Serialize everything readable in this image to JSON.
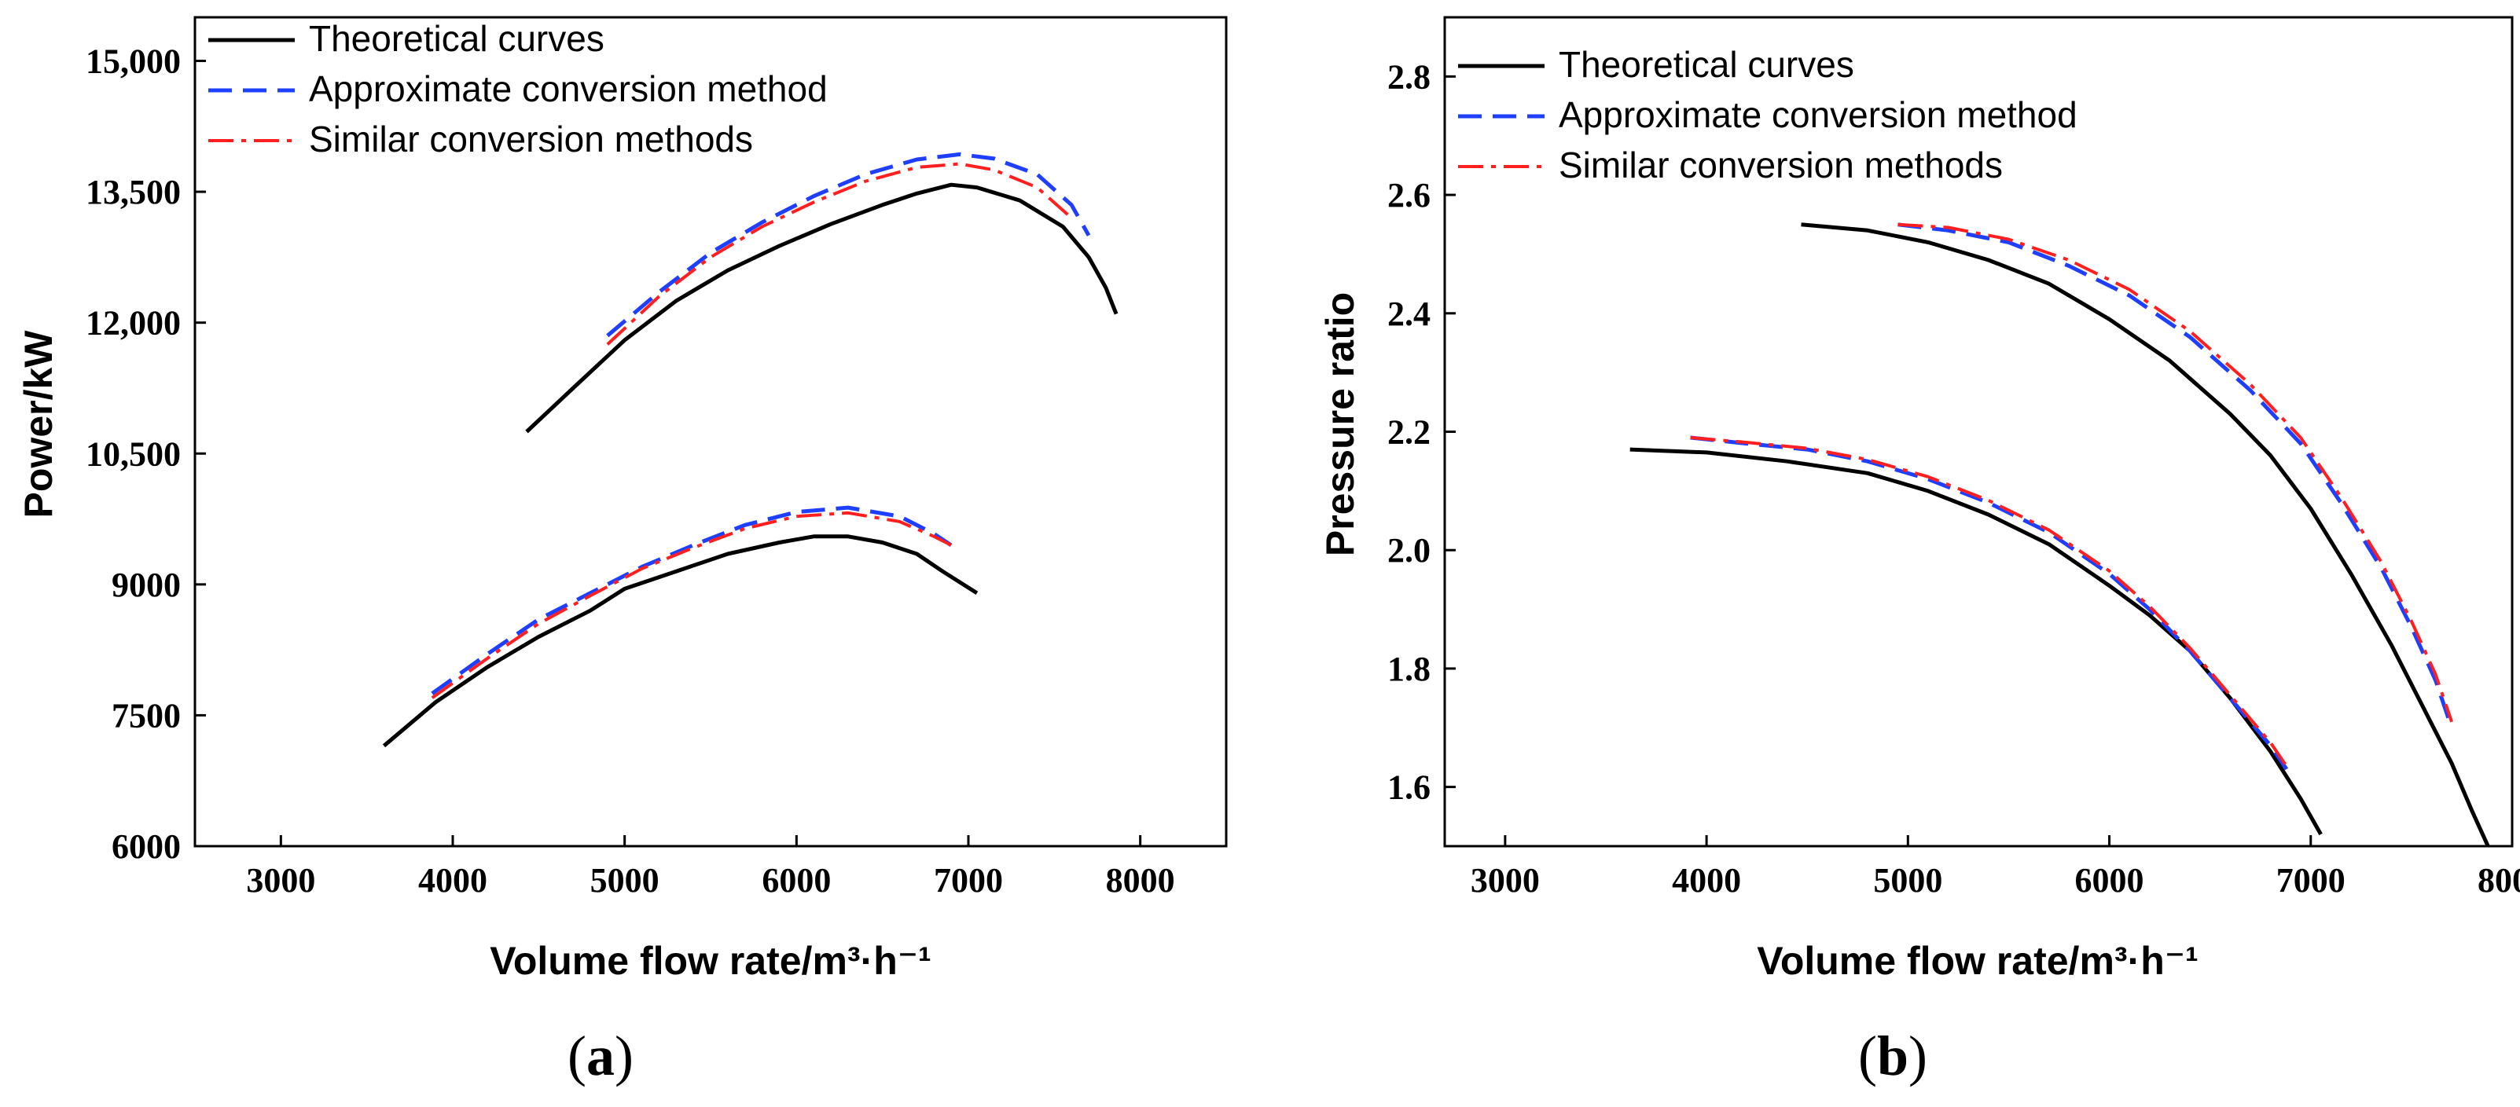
{
  "chart_data": [
    {
      "type": "line",
      "panel_label": "(a)",
      "panel_letter": "a",
      "xlabel": "Volume flow rate/m³·h⁻¹",
      "ylabel": "Power/kW",
      "xlim": [
        2500,
        8500
      ],
      "ylim": [
        6000,
        15500
      ],
      "xticks": [
        3000,
        4000,
        5000,
        6000,
        7000,
        8000
      ],
      "xtick_labels": [
        "3000",
        "4000",
        "5000",
        "6000",
        "7000",
        "8000"
      ],
      "yticks": [
        6000,
        7500,
        9000,
        10500,
        12000,
        13500,
        15000
      ],
      "ytick_labels": [
        "6000",
        "7500",
        "9000",
        "10,500",
        "12,000",
        "13,500",
        "15,000"
      ],
      "legend_position": "top-left",
      "legend": [
        "Theoretical curves",
        "Approximate conversion method",
        "Similar conversion methods"
      ],
      "series": [
        {
          "name": "Theoretical curves",
          "group": "high",
          "color": "#000000",
          "style": "solid",
          "x": [
            4430,
            4700,
            5000,
            5300,
            5600,
            5900,
            6200,
            6500,
            6700,
            6900,
            7050,
            7300,
            7550,
            7700,
            7800,
            7860
          ],
          "y": [
            10750,
            11250,
            11800,
            12250,
            12600,
            12880,
            13130,
            13350,
            13480,
            13580,
            13550,
            13400,
            13100,
            12750,
            12400,
            12100
          ]
        },
        {
          "name": "Approximate conversion method",
          "group": "high",
          "color": "#1f3fff",
          "style": "dashed",
          "x": [
            4900,
            5200,
            5500,
            5800,
            6100,
            6400,
            6700,
            6950,
            7150,
            7400,
            7600,
            7700
          ],
          "y": [
            11850,
            12350,
            12800,
            13150,
            13450,
            13700,
            13870,
            13930,
            13880,
            13700,
            13350,
            13000
          ]
        },
        {
          "name": "Similar conversion methods",
          "group": "high",
          "color": "#ff1f1f",
          "style": "dash-dot",
          "x": [
            4900,
            5200,
            5500,
            5800,
            6100,
            6400,
            6700,
            6950,
            7150,
            7400,
            7600
          ],
          "y": [
            11750,
            12300,
            12750,
            13100,
            13380,
            13620,
            13780,
            13820,
            13750,
            13550,
            13200
          ]
        },
        {
          "name": "Theoretical curves",
          "group": "low",
          "color": "#000000",
          "style": "solid",
          "x": [
            3600,
            3900,
            4200,
            4500,
            4800,
            5000,
            5300,
            5600,
            5900,
            6100,
            6300,
            6500,
            6700,
            6850,
            7050
          ],
          "y": [
            7150,
            7650,
            8050,
            8400,
            8700,
            8950,
            9150,
            9350,
            9480,
            9550,
            9550,
            9480,
            9350,
            9150,
            8900
          ]
        },
        {
          "name": "Approximate conversion method",
          "group": "low",
          "color": "#1f3fff",
          "style": "dashed",
          "x": [
            3880,
            4200,
            4500,
            4800,
            5100,
            5400,
            5700,
            6000,
            6300,
            6600,
            6800,
            6900
          ],
          "y": [
            7750,
            8200,
            8600,
            8900,
            9200,
            9450,
            9680,
            9830,
            9880,
            9780,
            9580,
            9450
          ]
        },
        {
          "name": "Similar conversion methods",
          "group": "low",
          "color": "#ff1f1f",
          "style": "dash-dot",
          "x": [
            3880,
            4200,
            4500,
            4800,
            5100,
            5400,
            5700,
            6000,
            6300,
            6600,
            6800,
            6900
          ],
          "y": [
            7700,
            8150,
            8550,
            8870,
            9180,
            9420,
            9640,
            9780,
            9820,
            9720,
            9550,
            9450
          ]
        }
      ]
    },
    {
      "type": "line",
      "panel_label": "(b)",
      "panel_letter": "b",
      "xlabel": "Volume flow rate/m³·h⁻¹",
      "ylabel": "Pressure ratio",
      "xlim": [
        2700,
        8000
      ],
      "ylim": [
        1.5,
        2.9
      ],
      "xticks": [
        3000,
        4000,
        5000,
        6000,
        7000,
        8000
      ],
      "xtick_labels": [
        "3000",
        "4000",
        "5000",
        "6000",
        "7000",
        "8000"
      ],
      "yticks": [
        1.6,
        1.8,
        2.0,
        2.2,
        2.4,
        2.6,
        2.8
      ],
      "ytick_labels": [
        "1.6",
        "1.8",
        "2.0",
        "2.2",
        "2.4",
        "2.6",
        "2.8"
      ],
      "legend_position": "top-left",
      "legend": [
        "Theoretical curves",
        "Approximate conversion method",
        "Similar conversion methods"
      ],
      "series": [
        {
          "name": "Theoretical curves",
          "group": "high",
          "color": "#000000",
          "style": "solid",
          "x": [
            4470,
            4800,
            5100,
            5400,
            5700,
            6000,
            6300,
            6600,
            6800,
            7000,
            7200,
            7400,
            7550,
            7700,
            7800,
            7880
          ],
          "y": [
            2.55,
            2.54,
            2.52,
            2.49,
            2.45,
            2.39,
            2.32,
            2.23,
            2.16,
            2.07,
            1.96,
            1.84,
            1.74,
            1.64,
            1.56,
            1.5
          ]
        },
        {
          "name": "Approximate conversion method",
          "group": "high",
          "color": "#1f3fff",
          "style": "dashed",
          "x": [
            4950,
            5200,
            5500,
            5800,
            6100,
            6400,
            6700,
            6950,
            7150,
            7350,
            7500,
            7620,
            7700
          ],
          "y": [
            2.55,
            2.54,
            2.52,
            2.48,
            2.43,
            2.36,
            2.27,
            2.18,
            2.08,
            1.97,
            1.87,
            1.78,
            1.7
          ]
        },
        {
          "name": "Similar conversion methods",
          "group": "high",
          "color": "#ff1f1f",
          "style": "dash-dot",
          "x": [
            4950,
            5200,
            5500,
            5800,
            6100,
            6400,
            6700,
            6950,
            7150,
            7350,
            7500,
            7620,
            7700
          ],
          "y": [
            2.55,
            2.545,
            2.525,
            2.49,
            2.44,
            2.37,
            2.28,
            2.19,
            2.09,
            1.98,
            1.88,
            1.79,
            1.71
          ]
        },
        {
          "name": "Theoretical curves",
          "group": "low",
          "color": "#000000",
          "style": "solid",
          "x": [
            3620,
            4000,
            4400,
            4800,
            5100,
            5400,
            5700,
            6000,
            6200,
            6400,
            6600,
            6800,
            6950,
            7050
          ],
          "y": [
            2.17,
            2.165,
            2.15,
            2.13,
            2.1,
            2.06,
            2.01,
            1.94,
            1.89,
            1.83,
            1.75,
            1.66,
            1.58,
            1.52
          ]
        },
        {
          "name": "Approximate conversion method",
          "group": "low",
          "color": "#1f3fff",
          "style": "dashed",
          "x": [
            3920,
            4200,
            4500,
            4800,
            5100,
            5400,
            5700,
            6000,
            6200,
            6400,
            6600,
            6800,
            6880
          ],
          "y": [
            2.19,
            2.18,
            2.17,
            2.15,
            2.12,
            2.08,
            2.03,
            1.96,
            1.9,
            1.83,
            1.75,
            1.67,
            1.63
          ]
        },
        {
          "name": "Similar conversion methods",
          "group": "low",
          "color": "#ff1f1f",
          "style": "dash-dot",
          "x": [
            3920,
            4200,
            4500,
            4800,
            5100,
            5400,
            5700,
            6000,
            6200,
            6400,
            6600,
            6800,
            6880
          ],
          "y": [
            2.19,
            2.182,
            2.172,
            2.153,
            2.124,
            2.084,
            2.034,
            1.965,
            1.905,
            1.835,
            1.755,
            1.675,
            1.635
          ]
        }
      ]
    }
  ]
}
